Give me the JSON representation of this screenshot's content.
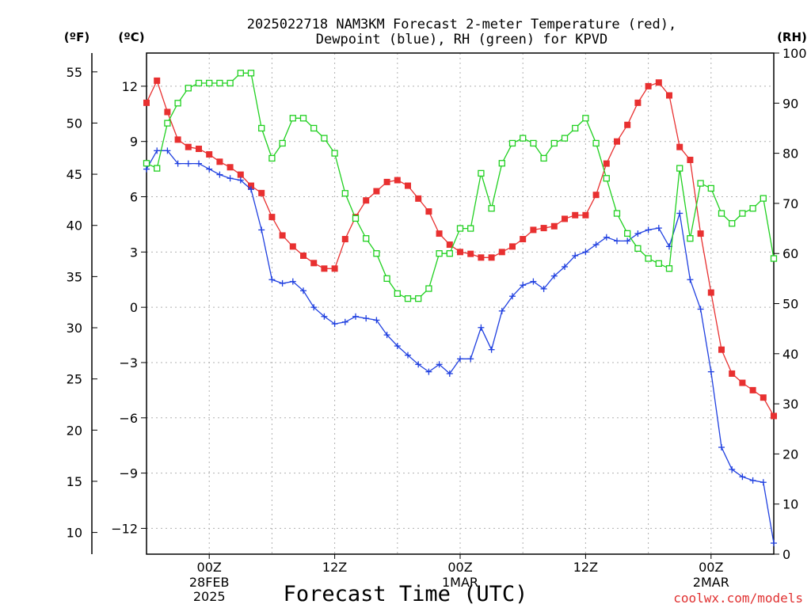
{
  "title_line1": "2025022718 NAM3KM Forecast 2-meter Temperature (red),",
  "title_line2": "Dewpoint (blue), RH (green) for KPVD",
  "units": {
    "fahrenheit": "(ºF)",
    "celsius": "(ºC)",
    "rh": "(RH)"
  },
  "x_axis_title": "Forecast Time (UTC)",
  "credit": "coolwx.com/models",
  "colors": {
    "temperature": "#e83030",
    "dewpoint": "#2040e0",
    "rh": "#20d020"
  },
  "chart_data": {
    "type": "line",
    "title": "2025022718 NAM3KM Forecast 2-meter Temperature (red), Dewpoint (blue), RH (green) for KPVD",
    "xlabel": "Forecast Time (UTC)",
    "x_unit": "forecast hour from 2025-02-27 18Z (hourly)",
    "x": [
      0,
      1,
      2,
      3,
      4,
      5,
      6,
      7,
      8,
      9,
      10,
      11,
      12,
      13,
      14,
      15,
      16,
      17,
      18,
      19,
      20,
      21,
      22,
      23,
      24,
      25,
      26,
      27,
      28,
      29,
      30,
      31,
      32,
      33,
      34,
      35,
      36,
      37,
      38,
      39,
      40,
      41,
      42,
      43,
      44,
      45,
      46,
      47,
      48,
      49,
      50,
      51,
      52,
      53,
      54,
      55,
      56,
      57,
      58,
      59,
      60
    ],
    "x_ticks": [
      {
        "label": "00Z",
        "sub": [
          "28FEB",
          "2025"
        ]
      },
      {
        "label": "12Z",
        "sub": []
      },
      {
        "label": "00Z",
        "sub": [
          "1MAR"
        ]
      },
      {
        "label": "12Z",
        "sub": []
      },
      {
        "label": "00Z",
        "sub": [
          "2MAR"
        ]
      }
    ],
    "y_left_celsius": {
      "range": [
        -13.4,
        13.8
      ],
      "ticks": [
        "12",
        "9",
        "6",
        "3",
        "0",
        "−3",
        "−6",
        "−9",
        "−12"
      ]
    },
    "y_left_fahrenheit": {
      "ticks": [
        "55",
        "50",
        "45",
        "40",
        "35",
        "30",
        "25",
        "20",
        "15",
        "10"
      ]
    },
    "y_right_rh": {
      "range": [
        0,
        100
      ],
      "ticks": [
        "100",
        "90",
        "80",
        "70",
        "60",
        "50",
        "40",
        "30",
        "20",
        "10",
        "0"
      ]
    },
    "grid": true,
    "series": [
      {
        "name": "Temperature",
        "axis": "celsius",
        "values": [
          11.1,
          12.3,
          10.6,
          9.1,
          8.7,
          8.6,
          8.3,
          7.9,
          7.6,
          7.2,
          6.6,
          6.2,
          4.9,
          3.9,
          3.3,
          2.8,
          2.4,
          2.1,
          2.1,
          3.7,
          4.9,
          5.8,
          6.3,
          6.8,
          6.9,
          6.6,
          5.9,
          5.2,
          4.0,
          3.4,
          3.0,
          2.9,
          2.7,
          2.7,
          3.0,
          3.3,
          3.7,
          4.2,
          4.3,
          4.4,
          4.8,
          5.0,
          5.0,
          6.1,
          7.8,
          9.0,
          9.9,
          11.1,
          12.0,
          12.2,
          11.5,
          8.7,
          8.0,
          4.0,
          0.8,
          -2.3,
          -3.6,
          -4.1,
          -4.5,
          -4.9,
          -5.9
        ]
      },
      {
        "name": "Dewpoint",
        "axis": "celsius",
        "values": [
          7.5,
          8.5,
          8.5,
          7.8,
          7.8,
          7.8,
          7.5,
          7.2,
          7.0,
          6.9,
          6.4,
          4.2,
          1.5,
          1.3,
          1.4,
          0.9,
          0.0,
          -0.5,
          -0.9,
          -0.8,
          -0.5,
          -0.6,
          -0.7,
          -1.5,
          -2.1,
          -2.6,
          -3.1,
          -3.5,
          -3.1,
          -3.6,
          -2.8,
          -2.8,
          -1.1,
          -2.3,
          -0.2,
          0.6,
          1.2,
          1.4,
          1.0,
          1.7,
          2.2,
          2.8,
          3.0,
          3.4,
          3.8,
          3.6,
          3.6,
          4.0,
          4.2,
          4.3,
          3.3,
          5.1,
          1.5,
          -0.1,
          -3.5,
          -7.6,
          -8.8,
          -9.2,
          -9.4,
          -9.5,
          -12.8
        ]
      },
      {
        "name": "RH",
        "axis": "rh",
        "values": [
          78,
          77,
          86,
          90,
          93,
          94,
          94,
          94,
          94,
          96,
          96,
          85,
          79,
          82,
          87,
          87,
          85,
          83,
          80,
          72,
          67,
          63,
          60,
          55,
          52,
          51,
          51,
          53,
          60,
          60,
          65,
          65,
          76,
          69,
          78,
          82,
          83,
          82,
          79,
          82,
          83,
          85,
          87,
          82,
          75,
          68,
          64,
          61,
          59,
          58,
          57,
          77,
          63,
          74,
          73,
          68,
          66,
          68,
          69,
          71,
          59
        ]
      }
    ]
  }
}
